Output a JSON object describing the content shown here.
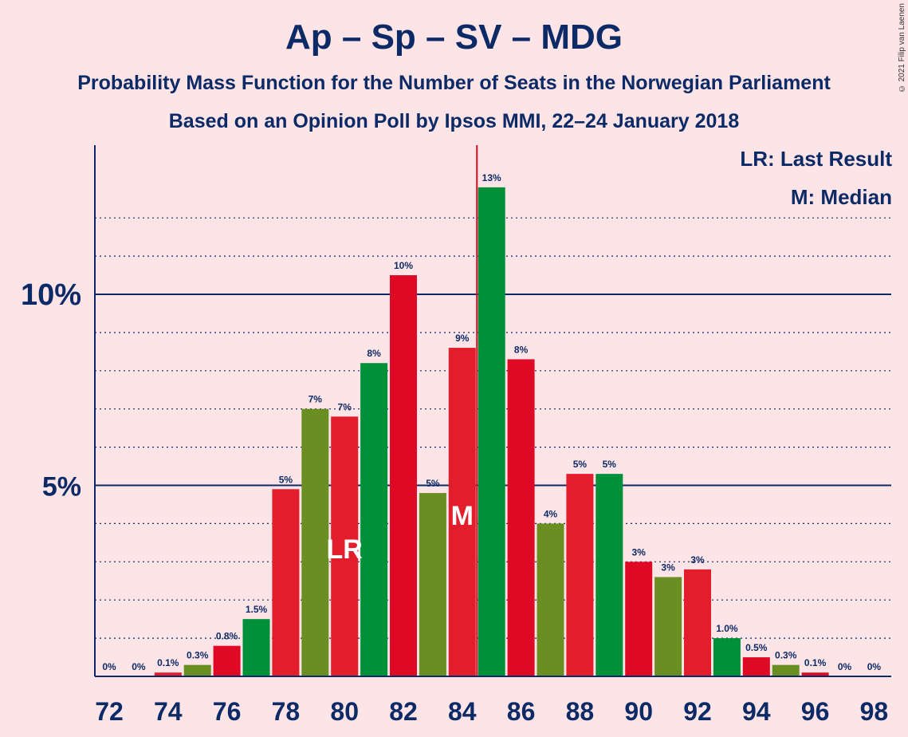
{
  "title": "Ap – Sp – SV – MDG",
  "subtitle1": "Probability Mass Function for the Number of Seats in the Norwegian Parliament",
  "subtitle2": "Based on an Opinion Poll by Ipsos MMI, 22–24 January 2018",
  "copyright": "© 2021 Filip van Laenen",
  "legend": {
    "lr": "LR: Last Result",
    "m": "M: Median"
  },
  "colors": {
    "background": "#fde4e6",
    "axis": "#0b2a66",
    "red_a": "#de0a25",
    "red_b": "#e31e2c",
    "green_a": "#00903a",
    "olive": "#6b8e23",
    "median_line": "#de0a25"
  },
  "chart_data": {
    "type": "bar",
    "xlabel": "",
    "ylabel": "",
    "ylim": [
      0,
      14
    ],
    "y_tick_labels": [
      {
        "value": 5,
        "label": "5%"
      },
      {
        "value": 10,
        "label": "10%"
      }
    ],
    "x_tick_labels": [
      "72",
      "74",
      "76",
      "78",
      "80",
      "82",
      "84",
      "86",
      "88",
      "90",
      "92",
      "94",
      "96",
      "98"
    ],
    "grid": "dotted minor every 1%, solid major at 5% and 10%",
    "categories": [
      72,
      73,
      74,
      75,
      76,
      77,
      78,
      79,
      80,
      81,
      82,
      83,
      84,
      85,
      86,
      87,
      88,
      89,
      90,
      91,
      92,
      93,
      94,
      95,
      96,
      97,
      98
    ],
    "values": [
      0,
      0,
      0.1,
      0.3,
      0.8,
      1.5,
      4.9,
      7.0,
      6.8,
      8.2,
      10.5,
      4.8,
      8.6,
      12.8,
      8.3,
      4.0,
      5.3,
      5.3,
      3.0,
      2.6,
      2.8,
      1.0,
      0.5,
      0.3,
      0.1,
      0,
      0
    ],
    "labels": [
      "0%",
      "0%",
      "0.1%",
      "0.3%",
      "0.8%",
      "1.5%",
      "5%",
      "7%",
      "7%",
      "8%",
      "10%",
      "5%",
      "9%",
      "13%",
      "8%",
      "4%",
      "5%",
      "5%",
      "3%",
      "3%",
      "3%",
      "1.0%",
      "0.5%",
      "0.3%",
      "0.1%",
      "0%",
      "0%"
    ],
    "bar_colors": [
      "red_a",
      "green_a",
      "red_b",
      "olive",
      "red_a",
      "green_a",
      "red_b",
      "olive",
      "red_b",
      "green_a",
      "red_a",
      "olive",
      "red_b",
      "green_a",
      "red_a",
      "olive",
      "red_b",
      "green_a",
      "red_a",
      "olive",
      "red_b",
      "green_a",
      "red_a",
      "olive",
      "red_a",
      "green_a",
      "red_a"
    ],
    "last_result": {
      "seats": 80,
      "label": "LR"
    },
    "median": {
      "seats": 84,
      "label": "M"
    }
  }
}
